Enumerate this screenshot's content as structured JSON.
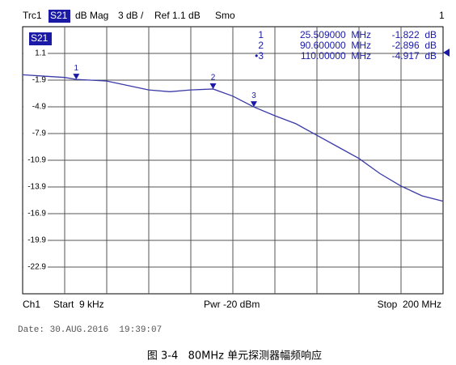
{
  "header": {
    "trace": "Trc1",
    "param": "S21",
    "format": "dB Mag",
    "scale": "3 dB /",
    "ref": "Ref 1.1 dB",
    "smo": "Smo",
    "channel_number": "1"
  },
  "chart_data": {
    "type": "line",
    "trace_label": "S21",
    "color": "#3a3aa8",
    "xlim": [
      0.009,
      200
    ],
    "ylim": [
      -25.9,
      4.1
    ],
    "yticks": [
      1.1,
      -1.9,
      -4.9,
      -7.9,
      -10.9,
      -13.9,
      -16.9,
      -19.9,
      -22.9
    ],
    "grid": true,
    "x": [
      0.009,
      10,
      20,
      25.509,
      40,
      50,
      60,
      70,
      80,
      90.6,
      100,
      110,
      120,
      130,
      140,
      150,
      160,
      170,
      180,
      190,
      200
    ],
    "values": [
      -1.3,
      -1.45,
      -1.6,
      -1.822,
      -2.0,
      -2.5,
      -3.0,
      -3.2,
      -3.0,
      -2.896,
      -3.7,
      -4.917,
      -5.9,
      -6.8,
      -8.1,
      -9.4,
      -10.7,
      -12.4,
      -13.8,
      -14.9,
      -15.5
    ],
    "markers": [
      {
        "name": "1",
        "table_name": "1",
        "x": 25.509,
        "y": -1.822,
        "x_label": "25.509000  MHz",
        "y_label": "-1.822  dB"
      },
      {
        "name": "2",
        "table_name": "2",
        "x": 90.6,
        "y": -2.896,
        "x_label": "90.600000  MHz",
        "y_label": "-2.896  dB"
      },
      {
        "name": "3",
        "table_name": "•3",
        "x": 110,
        "y": -4.917,
        "x_label": "110.00000  MHz",
        "y_label": "-4.917  dB"
      }
    ]
  },
  "footer": {
    "channel": "Ch1",
    "start": "Start  9 kHz",
    "power": "Pwr -20 dBm",
    "stop": "Stop  200 MHz"
  },
  "date": "Date: 30.AUG.2016  19:39:07",
  "caption": "图 3-4   80MHz 单元探测器幅频响应"
}
